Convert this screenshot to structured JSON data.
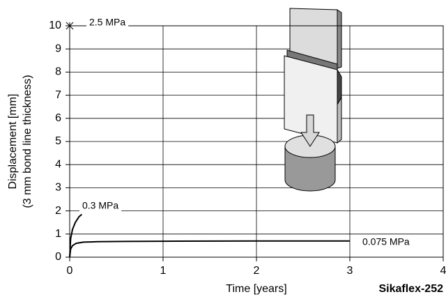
{
  "chart_data": {
    "type": "line",
    "x_label": "Time [years]",
    "y_label": [
      "Displacement [mm]",
      "(3 mm bond line thickness)"
    ],
    "product": "Sikaflex-252",
    "xlim": [
      0,
      4
    ],
    "xticks": [
      0,
      1,
      2,
      3,
      4
    ],
    "ylim": [
      0,
      10
    ],
    "yticks": [
      0,
      1,
      2,
      3,
      4,
      5,
      6,
      7,
      8,
      9,
      10
    ],
    "grid": true,
    "series": [
      {
        "name": "2.5 MPa",
        "color": "#000000",
        "x": [
          0
        ],
        "values": [
          10
        ]
      },
      {
        "name": "0.3 MPa",
        "color": "#000000",
        "x": [
          0,
          0.01,
          0.03,
          0.06,
          0.1,
          0.13
        ],
        "values": [
          0,
          0.8,
          1.2,
          1.5,
          1.75,
          1.85
        ]
      },
      {
        "name": "0.075 MPa",
        "color": "#000000",
        "x": [
          0,
          0.01,
          0.03,
          0.07,
          0.15,
          0.3,
          0.6,
          1,
          2,
          3
        ],
        "values": [
          0,
          0.35,
          0.5,
          0.6,
          0.65,
          0.67,
          0.68,
          0.69,
          0.7,
          0.7
        ]
      }
    ]
  }
}
